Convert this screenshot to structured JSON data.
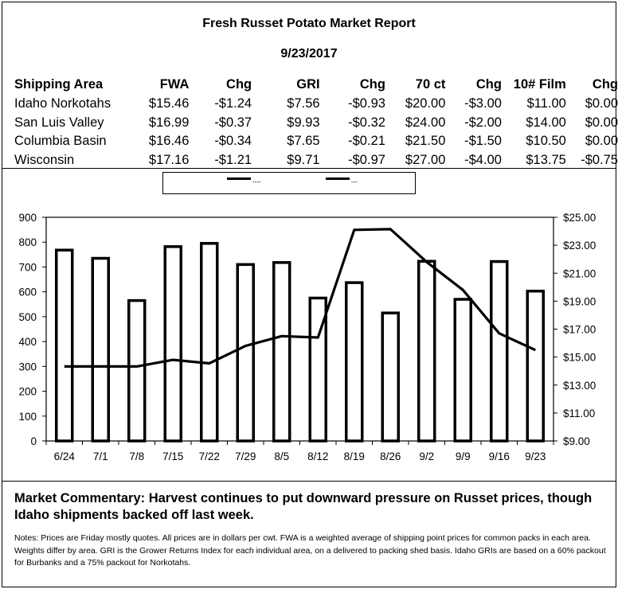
{
  "report": {
    "title": "Fresh Russet Potato Market Report",
    "date": "9/23/2017"
  },
  "table": {
    "headers": [
      "Shipping Area",
      "FWA",
      "Chg",
      "GRI",
      "Chg",
      "70 ct",
      "Chg",
      "10# Film",
      "Chg"
    ],
    "rows": [
      [
        "Idaho Norkotahs",
        "$15.46",
        "-$1.24",
        "$7.56",
        "-$0.93",
        "$20.00",
        "-$3.00",
        "$11.00",
        "$0.00"
      ],
      [
        "San Luis Valley",
        "$16.99",
        "-$0.37",
        "$9.93",
        "-$0.32",
        "$24.00",
        "-$2.00",
        "$14.00",
        "$0.00"
      ],
      [
        "Columbia Basin",
        "$16.46",
        "-$0.34",
        "$7.65",
        "-$0.21",
        "$21.50",
        "-$1.50",
        "$10.50",
        "$0.00"
      ],
      [
        "Wisconsin",
        "$17.16",
        "-$1.21",
        "$9.71",
        "-$0.97",
        "$27.00",
        "-$4.00",
        "$13.75",
        "-$0.75"
      ]
    ]
  },
  "chart_data": {
    "type": "bar",
    "categories": [
      "6/24",
      "7/1",
      "7/8",
      "7/15",
      "7/22",
      "7/29",
      "8/5",
      "8/12",
      "8/19",
      "8/26",
      "9/2",
      "9/9",
      "9/16",
      "9/23"
    ],
    "series": [
      {
        "kind": "bar",
        "axis": "left",
        "values": [
          768,
          735,
          565,
          782,
          795,
          710,
          718,
          575,
          637,
          515,
          723,
          570,
          722,
          603
        ]
      },
      {
        "kind": "line",
        "axis": "right",
        "values": [
          14.33,
          14.33,
          14.33,
          14.8,
          14.55,
          15.8,
          16.5,
          16.4,
          24.1,
          24.15,
          21.8,
          19.8,
          16.7,
          15.5
        ]
      }
    ],
    "y_left": {
      "min": 0,
      "max": 900,
      "ticks": [
        "0",
        "100",
        "200",
        "300",
        "400",
        "500",
        "600",
        "700",
        "800",
        "900"
      ]
    },
    "y_right": {
      "min": 9,
      "max": 25,
      "ticks": [
        "$9.00",
        "$11.00",
        "$13.00",
        "$15.00",
        "$17.00",
        "$19.00",
        "$21.00",
        "$23.00",
        "$25.00"
      ]
    },
    "legend": {
      "position": "top",
      "labels": [
        "----",
        "---"
      ]
    },
    "colors": {
      "bar_fill": "#ffffff",
      "bar_stroke": "#000000",
      "line": "#000000"
    }
  },
  "commentary": {
    "text": "Market Commentary: Harvest continues to put downward pressure on Russet prices, though Idaho shipments backed off last week."
  },
  "notes": {
    "text": "Notes: Prices are Friday mostly quotes. All prices are in dollars per cwt. FWA is a weighted average of shipping point prices for  common packs in each area. Weights differ by area. GRI is the Grower Returns Index for each individual area, on a delivered to packing shed basis. Idaho GRIs are based on a 60% packout for Burbanks and a 75% packout for Norkotahs."
  }
}
